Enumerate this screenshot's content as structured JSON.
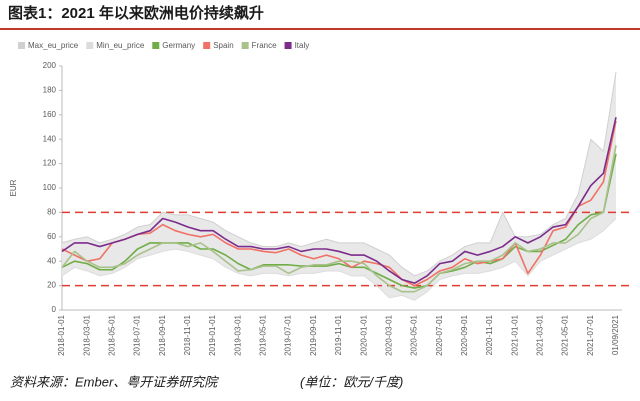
{
  "chart_data": {
    "type": "line",
    "title": "图表1：2021 年以来欧洲电价持续飙升",
    "y_label": "EUR",
    "source": "资料来源：Ember、粤开证券研究院",
    "unit_note": "(单位：欧元/千度)",
    "categories": [
      "2018-01-01",
      null,
      "2018-03-01",
      null,
      "2018-05-01",
      null,
      "2018-07-01",
      null,
      "2018-09-01",
      null,
      "2018-11-01",
      null,
      "2019-01-01",
      null,
      "2019-03-01",
      null,
      "2019-05-01",
      null,
      "2019-07-01",
      null,
      "2019-09-01",
      null,
      "2019-11-01",
      null,
      "2020-01-01",
      null,
      "2020-03-01",
      null,
      "2020-05-01",
      null,
      "2020-07-01",
      null,
      "2020-09-01",
      null,
      "2020-11-01",
      null,
      "2021-01-01",
      null,
      "2021-03-01",
      null,
      "2021-05-01",
      null,
      "2021-07-01",
      null,
      "01/09/2021"
    ],
    "ylim": [
      0,
      200
    ],
    "yticks": [
      0,
      20,
      40,
      60,
      80,
      100,
      120,
      140,
      160,
      180,
      200
    ],
    "reference_lines": [
      80,
      20
    ],
    "reference_color": "#e03c31",
    "band_color": "#e8e8e8",
    "series": [
      {
        "name": "Max_eu_price",
        "color": "#d0d0d0",
        "values": [
          55,
          58,
          60,
          55,
          58,
          62,
          68,
          70,
          80,
          78,
          78,
          75,
          72,
          65,
          60,
          55,
          52,
          52,
          55,
          52,
          55,
          58,
          55,
          55,
          55,
          50,
          45,
          35,
          28,
          32,
          40,
          45,
          52,
          55,
          55,
          80,
          60,
          60,
          62,
          70,
          75,
          95,
          140,
          130,
          195
        ]
      },
      {
        "name": "Min_eu_price",
        "color": "#dcdcdc",
        "values": [
          28,
          35,
          32,
          28,
          30,
          35,
          42,
          45,
          48,
          50,
          48,
          45,
          42,
          35,
          30,
          28,
          30,
          30,
          28,
          30,
          30,
          32,
          32,
          28,
          28,
          20,
          10,
          12,
          8,
          15,
          25,
          28,
          30,
          30,
          32,
          35,
          40,
          28,
          40,
          45,
          50,
          55,
          58,
          65,
          75
        ]
      },
      {
        "name": "Germany",
        "color": "#70ad47",
        "values": [
          35,
          40,
          38,
          33,
          33,
          40,
          50,
          55,
          55,
          55,
          55,
          50,
          50,
          45,
          38,
          33,
          37,
          37,
          37,
          36,
          36,
          36,
          38,
          35,
          35,
          30,
          25,
          20,
          18,
          20,
          30,
          32,
          35,
          40,
          38,
          42,
          52,
          48,
          48,
          53,
          58,
          70,
          78,
          80,
          128
        ]
      },
      {
        "name": "Spain",
        "color": "#f07167",
        "values": [
          50,
          45,
          40,
          42,
          55,
          58,
          62,
          63,
          70,
          65,
          62,
          60,
          62,
          55,
          50,
          50,
          48,
          47,
          50,
          45,
          42,
          45,
          42,
          35,
          40,
          38,
          35,
          25,
          20,
          25,
          32,
          35,
          42,
          38,
          40,
          42,
          55,
          30,
          45,
          65,
          68,
          85,
          90,
          105,
          155
        ]
      },
      {
        "name": "France",
        "color": "#a9c18a",
        "values": [
          35,
          48,
          40,
          35,
          35,
          38,
          45,
          50,
          55,
          55,
          52,
          55,
          48,
          40,
          32,
          33,
          36,
          36,
          30,
          35,
          37,
          37,
          40,
          40,
          38,
          28,
          20,
          15,
          15,
          20,
          30,
          33,
          38,
          40,
          40,
          45,
          55,
          48,
          50,
          55,
          55,
          62,
          75,
          80,
          135
        ]
      },
      {
        "name": "Italy",
        "color": "#7b2c8c",
        "values": [
          48,
          55,
          55,
          52,
          55,
          58,
          62,
          65,
          75,
          72,
          68,
          65,
          65,
          58,
          52,
          52,
          50,
          50,
          52,
          48,
          50,
          50,
          48,
          45,
          45,
          40,
          32,
          25,
          22,
          28,
          38,
          40,
          48,
          45,
          48,
          52,
          60,
          55,
          60,
          68,
          70,
          85,
          102,
          112,
          158
        ]
      }
    ]
  }
}
